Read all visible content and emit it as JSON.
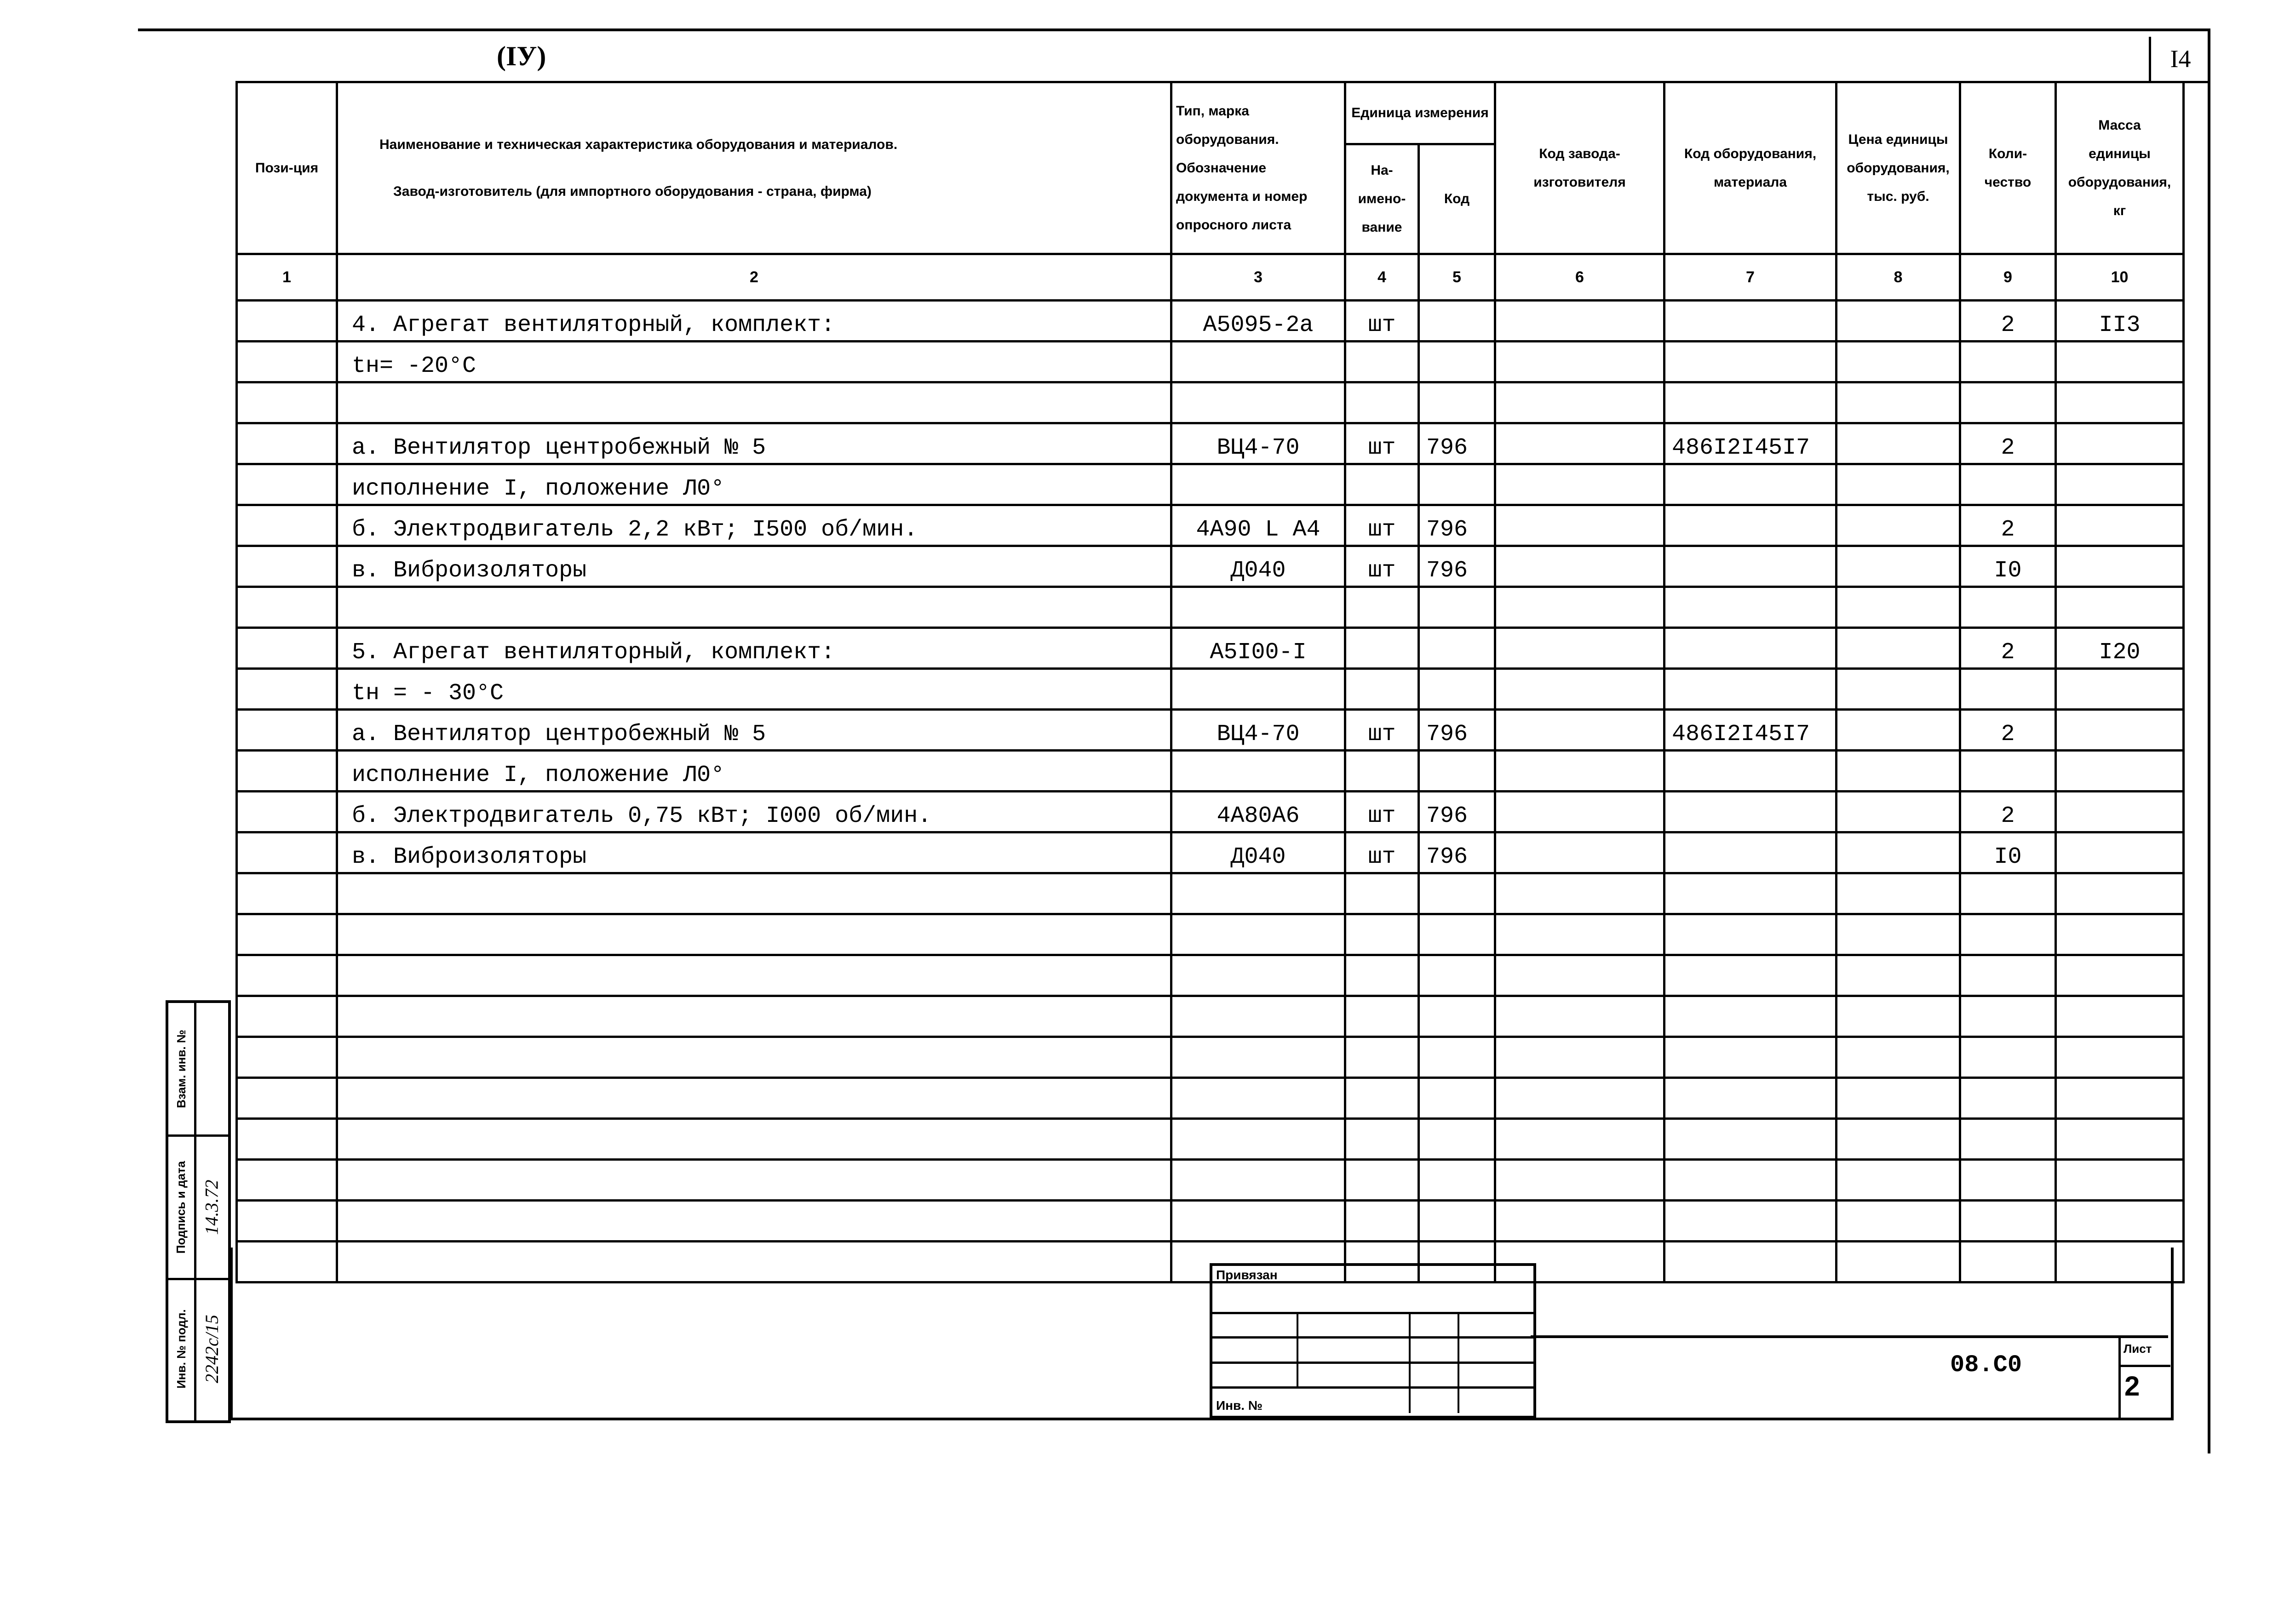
{
  "section_mark": "(IУ)",
  "sheet_number": "I4",
  "header": {
    "col1": "Пози-ция",
    "col2_line1": "Наименование и техническая характеристика оборудования и материалов.",
    "col2_line2": "Завод-изготовитель (для импортного оборудования - страна, фирма)",
    "col3": "Тип, марка оборудования. Обозначение документа и номер опросного листа",
    "col45_group": "Единица измерения",
    "col4": "На-имено-вание",
    "col5": "Код",
    "col6": "Код завода-изготовителя",
    "col7": "Код оборудования, материала",
    "col8": "Цена единицы оборудования, тыс. руб.",
    "col9": "Коли-чество",
    "col10": "Масса единицы оборудования, кг"
  },
  "column_numbers": [
    "1",
    "2",
    "3",
    "4",
    "5",
    "6",
    "7",
    "8",
    "9",
    "10"
  ],
  "rows": [
    {
      "pos": "",
      "name": "4. Агрегат вентиляторный, комплект:",
      "indent": 0,
      "type": "А5095-2а",
      "unit": "шт",
      "unit_code": "",
      "plant_code": "",
      "equip_code": "",
      "price": "",
      "qty": "2",
      "mass": "II3"
    },
    {
      "pos": "",
      "name": "tн= -20°С",
      "indent": 1,
      "type": "",
      "unit": "",
      "unit_code": "",
      "plant_code": "",
      "equip_code": "",
      "price": "",
      "qty": "",
      "mass": ""
    },
    {
      "pos": "",
      "name": "",
      "indent": 0,
      "type": "",
      "unit": "",
      "unit_code": "",
      "plant_code": "",
      "equip_code": "",
      "price": "",
      "qty": "",
      "mass": ""
    },
    {
      "pos": "",
      "name": "а. Вентилятор центробежный № 5",
      "indent": 2,
      "type": "ВЦ4-70",
      "unit": "шт",
      "unit_code": "796",
      "plant_code": "",
      "equip_code": "486I2I45I7",
      "price": "",
      "qty": "2",
      "mass": ""
    },
    {
      "pos": "",
      "name": "исполнение I, положение Л0°",
      "indent": 3,
      "type": "",
      "unit": "",
      "unit_code": "",
      "plant_code": "",
      "equip_code": "",
      "price": "",
      "qty": "",
      "mass": ""
    },
    {
      "pos": "",
      "name": "б. Электродвигатель 2,2 кВт; I500 об/мин.",
      "indent": 2,
      "type": "4А90 L А4",
      "unit": "шт",
      "unit_code": "796",
      "plant_code": "",
      "equip_code": "",
      "price": "",
      "qty": "2",
      "mass": ""
    },
    {
      "pos": "",
      "name": "в. Виброизоляторы",
      "indent": 2,
      "type": "Д040",
      "unit": "шт",
      "unit_code": "796",
      "plant_code": "",
      "equip_code": "",
      "price": "",
      "qty": "I0",
      "mass": ""
    },
    {
      "pos": "",
      "name": "",
      "indent": 0,
      "type": "",
      "unit": "",
      "unit_code": "",
      "plant_code": "",
      "equip_code": "",
      "price": "",
      "qty": "",
      "mass": ""
    },
    {
      "pos": "",
      "name": "5. Агрегат вентиляторный, комплект:",
      "indent": 0,
      "type": "А5I00-I",
      "unit": "",
      "unit_code": "",
      "plant_code": "",
      "equip_code": "",
      "price": "",
      "qty": "2",
      "mass": "I20"
    },
    {
      "pos": "",
      "name": "tн = - 30°С",
      "indent": 1,
      "type": "",
      "unit": "",
      "unit_code": "",
      "plant_code": "",
      "equip_code": "",
      "price": "",
      "qty": "",
      "mass": ""
    },
    {
      "pos": "",
      "name": "а. Вентилятор центробежный № 5",
      "indent": 2,
      "type": "ВЦ4-70",
      "unit": "шт",
      "unit_code": "796",
      "plant_code": "",
      "equip_code": "486I2I45I7",
      "price": "",
      "qty": "2",
      "mass": ""
    },
    {
      "pos": "",
      "name": "исполнение I, положение Л0°",
      "indent": 3,
      "type": "",
      "unit": "",
      "unit_code": "",
      "plant_code": "",
      "equip_code": "",
      "price": "",
      "qty": "",
      "mass": ""
    },
    {
      "pos": "",
      "name": "б. Электродвигатель 0,75 кВт; I000 об/мин.",
      "indent": 2,
      "type": "4А80А6",
      "unit": "шт",
      "unit_code": "796",
      "plant_code": "",
      "equip_code": "",
      "price": "",
      "qty": "2",
      "mass": ""
    },
    {
      "pos": "",
      "name": "в. Виброизоляторы",
      "indent": 2,
      "type": "Д040",
      "unit": "шт",
      "unit_code": "796",
      "plant_code": "",
      "equip_code": "",
      "price": "",
      "qty": "I0",
      "mass": ""
    },
    {
      "pos": "",
      "name": "",
      "indent": 0,
      "type": "",
      "unit": "",
      "unit_code": "",
      "plant_code": "",
      "equip_code": "",
      "price": "",
      "qty": "",
      "mass": ""
    },
    {
      "pos": "",
      "name": "",
      "indent": 0,
      "type": "",
      "unit": "",
      "unit_code": "",
      "plant_code": "",
      "equip_code": "",
      "price": "",
      "qty": "",
      "mass": ""
    },
    {
      "pos": "",
      "name": "",
      "indent": 0,
      "type": "",
      "unit": "",
      "unit_code": "",
      "plant_code": "",
      "equip_code": "",
      "price": "",
      "qty": "",
      "mass": ""
    },
    {
      "pos": "",
      "name": "",
      "indent": 0,
      "type": "",
      "unit": "",
      "unit_code": "",
      "plant_code": "",
      "equip_code": "",
      "price": "",
      "qty": "",
      "mass": ""
    },
    {
      "pos": "",
      "name": "",
      "indent": 0,
      "type": "",
      "unit": "",
      "unit_code": "",
      "plant_code": "",
      "equip_code": "",
      "price": "",
      "qty": "",
      "mass": ""
    },
    {
      "pos": "",
      "name": "",
      "indent": 0,
      "type": "",
      "unit": "",
      "unit_code": "",
      "plant_code": "",
      "equip_code": "",
      "price": "",
      "qty": "",
      "mass": ""
    },
    {
      "pos": "",
      "name": "",
      "indent": 0,
      "type": "",
      "unit": "",
      "unit_code": "",
      "plant_code": "",
      "equip_code": "",
      "price": "",
      "qty": "",
      "mass": ""
    },
    {
      "pos": "",
      "name": "",
      "indent": 0,
      "type": "",
      "unit": "",
      "unit_code": "",
      "plant_code": "",
      "equip_code": "",
      "price": "",
      "qty": "",
      "mass": ""
    },
    {
      "pos": "",
      "name": "",
      "indent": 0,
      "type": "",
      "unit": "",
      "unit_code": "",
      "plant_code": "",
      "equip_code": "",
      "price": "",
      "qty": "",
      "mass": ""
    },
    {
      "pos": "",
      "name": "",
      "indent": 0,
      "type": "",
      "unit": "",
      "unit_code": "",
      "plant_code": "",
      "equip_code": "",
      "price": "",
      "qty": "",
      "mass": ""
    }
  ],
  "stamp": {
    "linked_label": "Привязан",
    "inv_label": "Инв. №"
  },
  "title_block": {
    "doc_code": "08.C0",
    "sheet_label": "Лист",
    "sheet_value": "2"
  },
  "side_strip": {
    "inv_orig_label": "Инв. № подл.",
    "sign_date_label": "Подпись и дата",
    "inv_repl_label": "Взам. инв. №",
    "inv_orig_value": "2242с/15",
    "sign_date_value": "14.3.72"
  }
}
